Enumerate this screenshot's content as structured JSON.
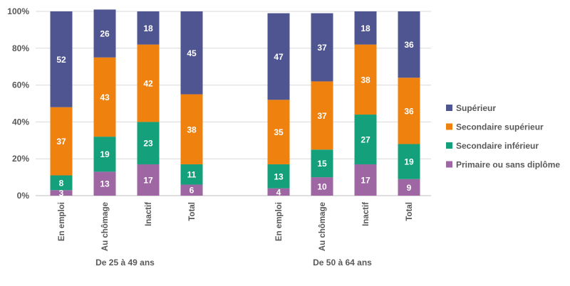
{
  "chart_data": {
    "type": "bar",
    "stacked": true,
    "percent": true,
    "groups": [
      {
        "label": "De 25 à 49 ans",
        "categories": [
          "En emploi",
          "Au chômage",
          "Inactif",
          "Total"
        ]
      },
      {
        "label": "De 50 à 64 ans",
        "categories": [
          "En emploi",
          "Au chômage",
          "Inactif",
          "Total"
        ]
      }
    ],
    "series": [
      {
        "name": "Primaire ou sans diplôme",
        "color": "#9e67a3",
        "values": [
          3,
          13,
          17,
          6,
          4,
          10,
          17,
          9
        ]
      },
      {
        "name": "Secondaire inférieur",
        "color": "#13a07a",
        "values": [
          8,
          19,
          23,
          11,
          13,
          15,
          27,
          19
        ]
      },
      {
        "name": "Secondaire supérieur",
        "color": "#ef820f",
        "values": [
          37,
          43,
          42,
          38,
          35,
          37,
          38,
          36
        ]
      },
      {
        "name": "Supérieur",
        "color": "#4f5591",
        "values": [
          52,
          26,
          18,
          45,
          47,
          37,
          18,
          36
        ]
      }
    ],
    "y_ticks": [
      "0%",
      "20%",
      "40%",
      "60%",
      "80%",
      "100%"
    ],
    "ylim": [
      0,
      100
    ],
    "grid": true,
    "legend_position": "right"
  }
}
